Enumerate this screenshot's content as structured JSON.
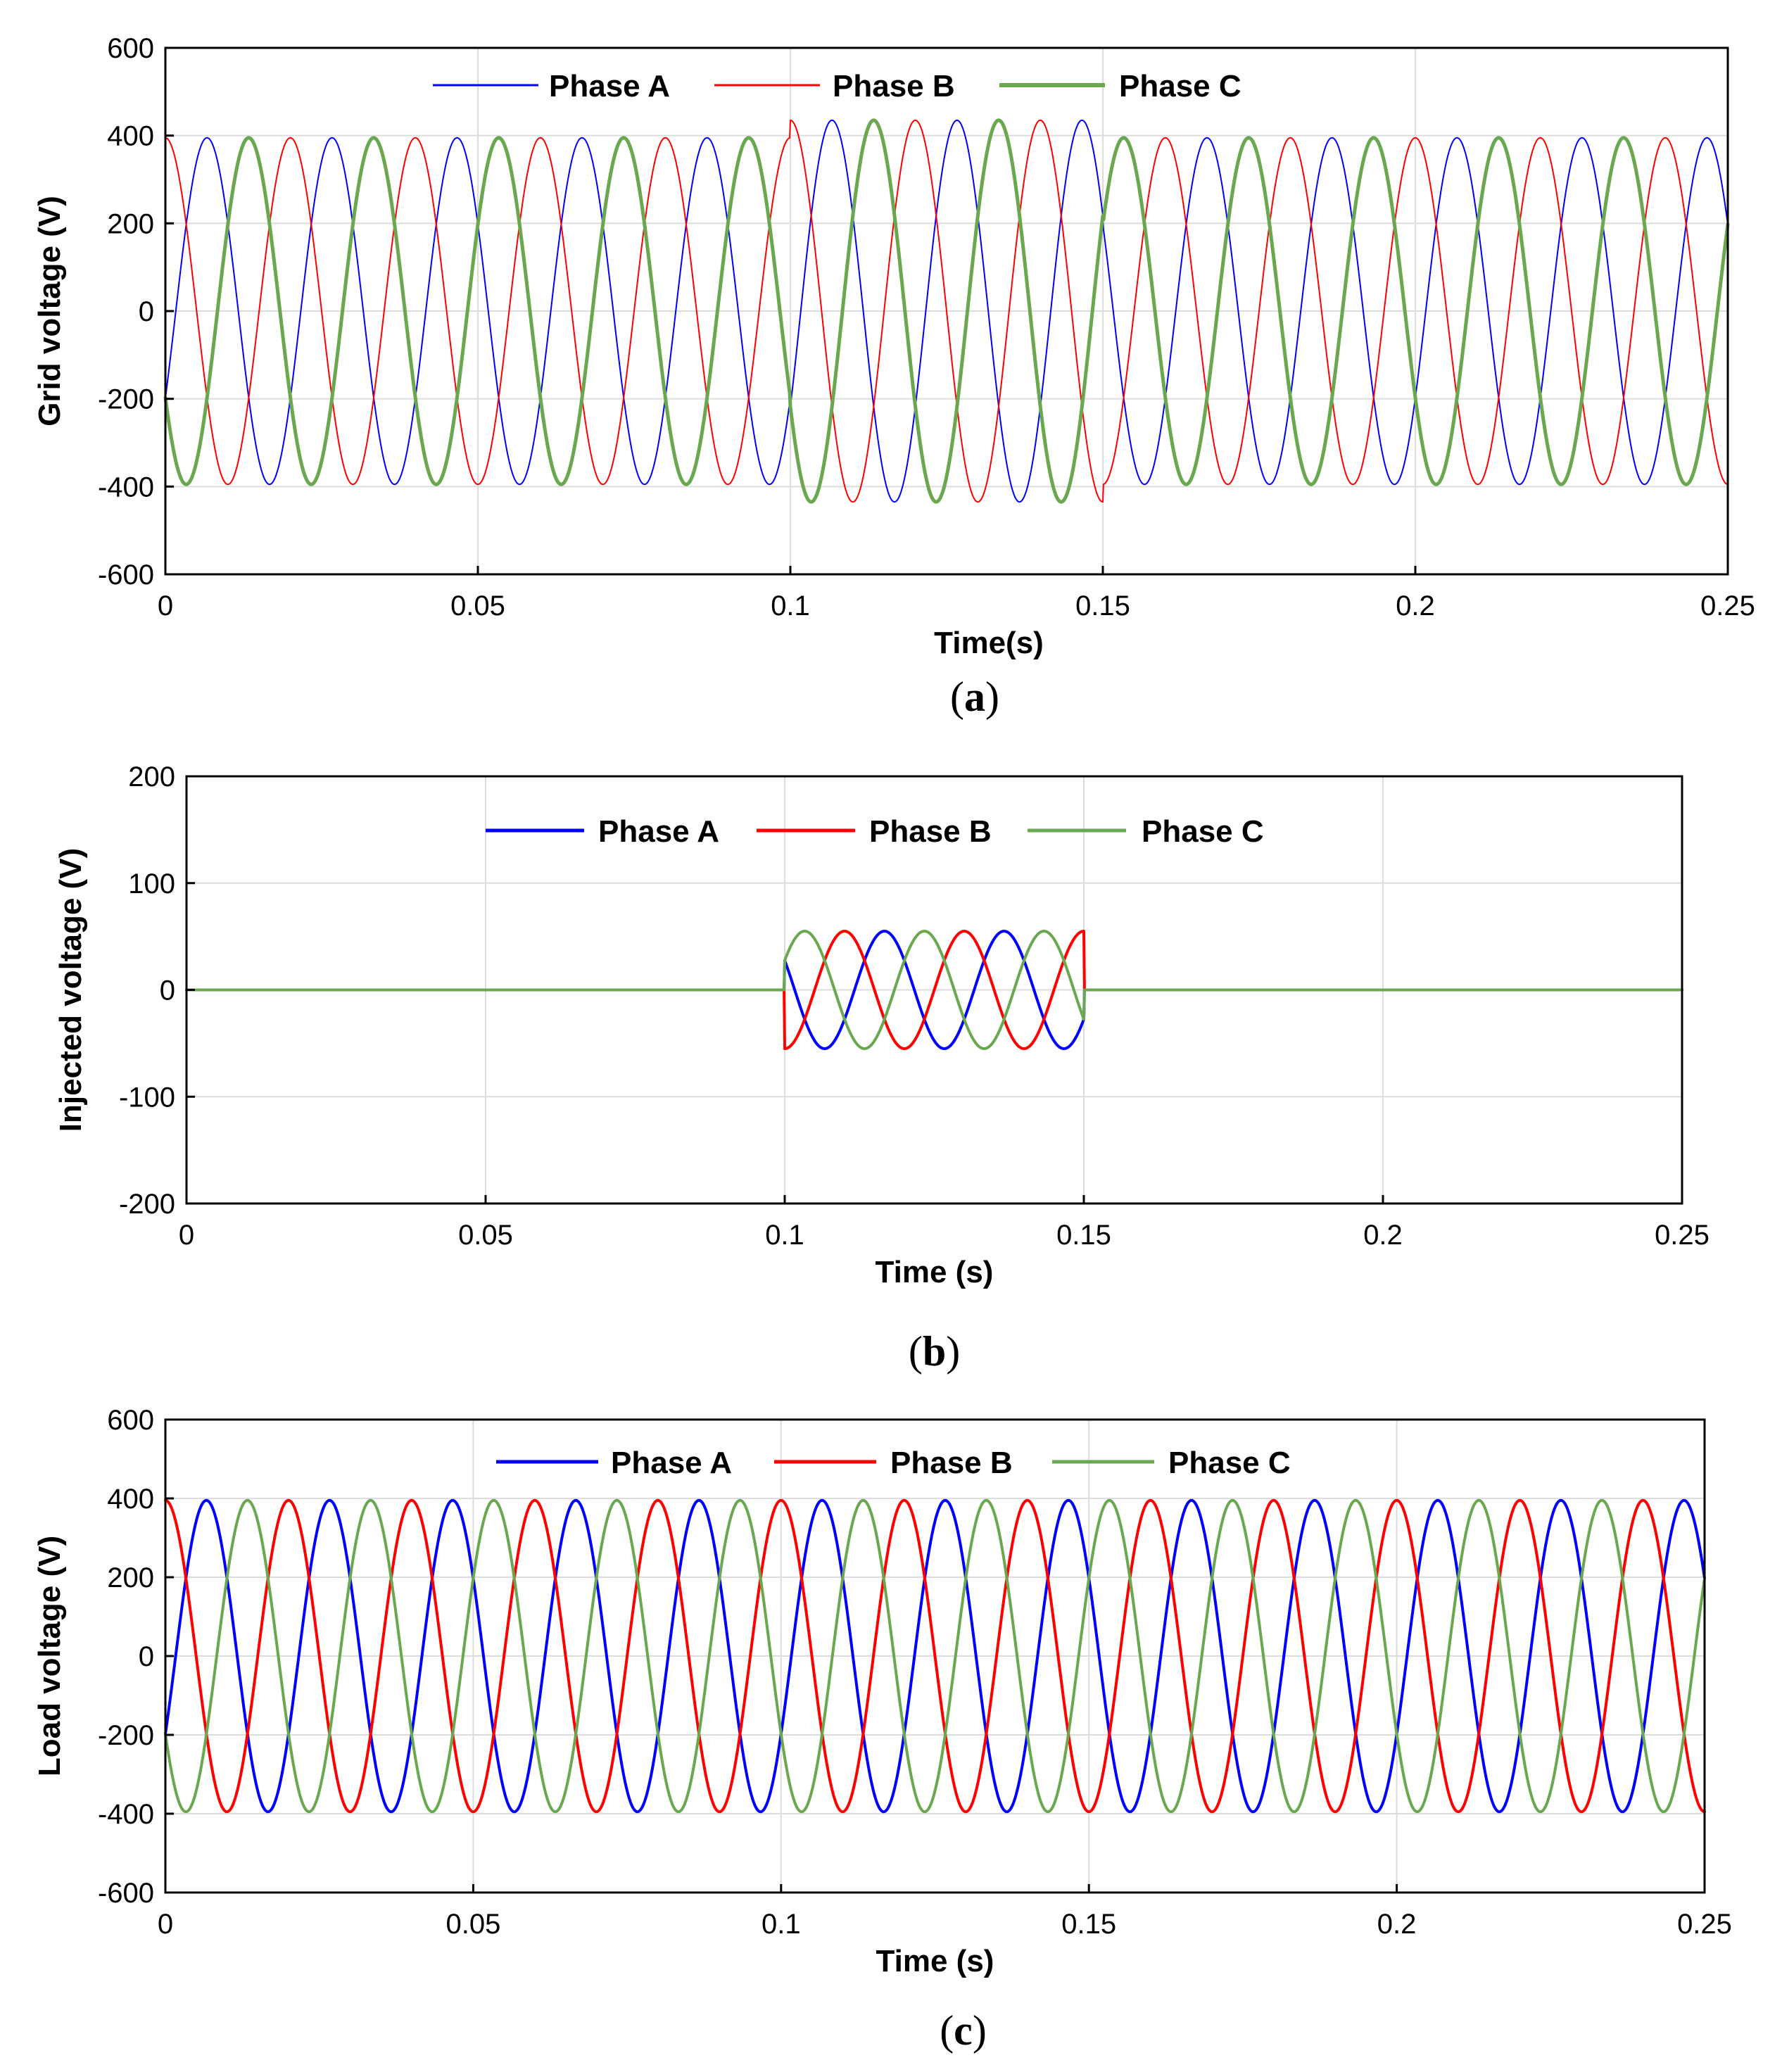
{
  "figure": {
    "colors": {
      "phase_a": "#0000ff",
      "phase_b": "#ff0000",
      "phase_c": "#6aa84f"
    }
  },
  "chart_data": [
    {
      "id": "a",
      "type": "line",
      "caption": "a",
      "xlabel": "Time(s)",
      "ylabel": "Grid voltage (V)",
      "xlim": [
        0,
        0.25
      ],
      "ylim": [
        -600,
        600
      ],
      "xticks": [
        0,
        0.05,
        0.1,
        0.15,
        0.2,
        0.25
      ],
      "xtick_labels": [
        "0",
        "0.05",
        "0.1",
        "0.15",
        "0.2",
        "0.25"
      ],
      "yticks": [
        -600,
        -400,
        -200,
        0,
        200,
        400,
        600
      ],
      "ytick_labels": [
        "-600",
        "-400",
        "-200",
        "0",
        "200",
        "400",
        "600"
      ],
      "grid": true,
      "legend_position": "top-center",
      "model": {
        "kind": "three-phase-sine",
        "frequency_hz": 50,
        "amplitude": 395,
        "sag_start_s": 0.1,
        "sag_end_s": 0.15,
        "amplitude_during_event": 435,
        "phase_offsets_deg": [
          -30,
          90,
          210
        ]
      },
      "series": [
        {
          "name": "Phase A",
          "color_key": "phase_a",
          "phase_deg": -30
        },
        {
          "name": "Phase B",
          "color_key": "phase_b",
          "phase_deg": 90
        },
        {
          "name": "Phase C",
          "color_key": "phase_c",
          "phase_deg": 210
        }
      ]
    },
    {
      "id": "b",
      "type": "line",
      "caption": "b",
      "xlabel": "Time (s)",
      "ylabel": "Injected voltage (V)",
      "xlim": [
        0,
        0.25
      ],
      "ylim": [
        -200,
        200
      ],
      "xticks": [
        0,
        0.05,
        0.1,
        0.15,
        0.2,
        0.25
      ],
      "xtick_labels": [
        "0",
        "0.05",
        "0.1",
        "0.15",
        "0.2",
        "0.25"
      ],
      "yticks": [
        -200,
        -100,
        0,
        100,
        200
      ],
      "ytick_labels": [
        "-200",
        "-100",
        "0",
        "100",
        "200"
      ],
      "grid": true,
      "legend_position": "top-center",
      "model": {
        "kind": "three-phase-burst",
        "frequency_hz": 50,
        "amplitude_outside": 0,
        "amplitude_during_event": 55,
        "event_start_s": 0.1,
        "event_end_s": 0.15
      },
      "series": [
        {
          "name": "Phase A",
          "color_key": "phase_a",
          "phase_deg": 150
        },
        {
          "name": "Phase B",
          "color_key": "phase_b",
          "phase_deg": 270
        },
        {
          "name": "Phase C",
          "color_key": "phase_c",
          "phase_deg": 30
        }
      ]
    },
    {
      "id": "c",
      "type": "line",
      "caption": "c",
      "xlabel": "Time (s)",
      "ylabel": "Load voltage (V)",
      "xlim": [
        0,
        0.25
      ],
      "ylim": [
        -600,
        600
      ],
      "xticks": [
        0,
        0.05,
        0.1,
        0.15,
        0.2,
        0.25
      ],
      "xtick_labels": [
        "0",
        "0.05",
        "0.1",
        "0.15",
        "0.2",
        "0.25"
      ],
      "yticks": [
        -600,
        -400,
        -200,
        0,
        200,
        400,
        600
      ],
      "ytick_labels": [
        "-600",
        "-400",
        "-200",
        "0",
        "200",
        "400",
        "600"
      ],
      "grid": true,
      "legend_position": "top-center",
      "model": {
        "kind": "three-phase-sine",
        "frequency_hz": 50,
        "amplitude": 395,
        "sag_start_s": 0.1,
        "sag_end_s": 0.15,
        "amplitude_during_event": 395
      },
      "series": [
        {
          "name": "Phase A",
          "color_key": "phase_a",
          "phase_deg": -30
        },
        {
          "name": "Phase B",
          "color_key": "phase_b",
          "phase_deg": 90
        },
        {
          "name": "Phase C",
          "color_key": "phase_c",
          "phase_deg": 210
        }
      ]
    }
  ]
}
